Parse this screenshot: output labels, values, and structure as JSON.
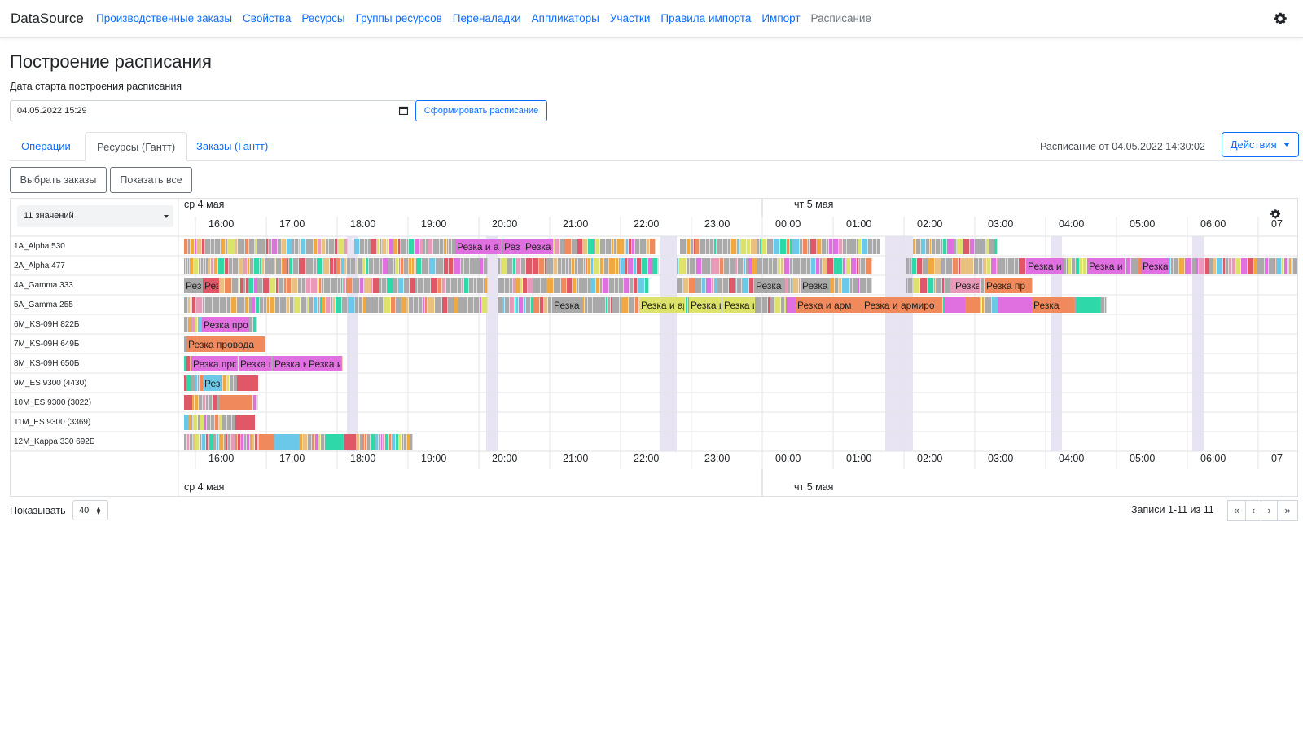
{
  "navbar": {
    "brand": "DataSource",
    "links": [
      "Производственные заказы",
      "Свойства",
      "Ресурсы",
      "Группы ресурсов",
      "Переналадки",
      "Аппликаторы",
      "Участки",
      "Правила импорта",
      "Импорт",
      "Расписание"
    ],
    "active_index": 9,
    "settings_icon": "gear-icon"
  },
  "page": {
    "title": "Построение расписания",
    "date_label": "Дата старта построения расписания",
    "date_value": "04.05.2022 15:29",
    "calendar_icon": "calendar-icon",
    "generate_button": "Сформировать расписание"
  },
  "tabs": [
    {
      "label": "Операции",
      "active": false
    },
    {
      "label": "Ресурсы (Гантт)",
      "active": true
    },
    {
      "label": "Заказы (Гантт)",
      "active": false
    }
  ],
  "schedule_info": "Расписание от 04.05.2022 14:30:02",
  "actions_button": "Действия",
  "buttons": {
    "select_orders": "Выбрать заказы",
    "show_all": "Показать все"
  },
  "gantt": {
    "filter_value": "11 значений",
    "days": [
      "ср 4 мая",
      "чт 5 мая"
    ],
    "hours": [
      "16:00",
      "17:00",
      "18:00",
      "19:00",
      "20:00",
      "21:00",
      "22:00",
      "23:00",
      "00:00",
      "01:00",
      "02:00",
      "03:00",
      "04:00",
      "05:00",
      "06:00",
      "07"
    ],
    "resources": [
      "1A_Alpha 530",
      "2A_Alpha 477",
      "4A_Gamma 333",
      "5A_Gamma 255",
      "6M_KS-09H 822Б",
      "7M_KS-09H 649Б",
      "8M_KS-09H 650Б",
      "9M_ES 9300 (4430)",
      "10M_ES 9300 (3022)",
      "11M_ES 9300 (3369)",
      "12M_Kappa 330 692Б"
    ],
    "colors": {
      "grey": "#a9a9a9",
      "magenta": "#e070e0",
      "salmon": "#f08a5d",
      "yellow": "#dde36a",
      "red": "#e05868",
      "teal": "#2fd8a8",
      "cyan": "#6cc8e8",
      "orange": "#f0a840",
      "tan": "#e8c080",
      "pink": "#e89ab8",
      "break": "#e8e4f4"
    },
    "named_tasks": [
      {
        "row": 0,
        "text": "Резка и а",
        "color": "magenta"
      },
      {
        "row": 0,
        "text": "Рез",
        "color": "magenta"
      },
      {
        "row": 0,
        "text": "Резка",
        "color": "magenta"
      },
      {
        "row": 1,
        "text": "Резка и",
        "color": "magenta"
      },
      {
        "row": 1,
        "text": "Резка и",
        "color": "magenta"
      },
      {
        "row": 1,
        "text": "Резка",
        "color": "magenta"
      },
      {
        "row": 2,
        "text": "Рез",
        "color": "grey"
      },
      {
        "row": 2,
        "text": "Рез",
        "color": "red"
      },
      {
        "row": 2,
        "text": "Резка",
        "color": "grey"
      },
      {
        "row": 2,
        "text": "Резка",
        "color": "grey"
      },
      {
        "row": 2,
        "text": "Резка",
        "color": "pink"
      },
      {
        "row": 2,
        "text": "Резка пр",
        "color": "salmon"
      },
      {
        "row": 3,
        "text": "Резка",
        "color": "grey"
      },
      {
        "row": 3,
        "text": "Резка и арм",
        "color": "yellow"
      },
      {
        "row": 3,
        "text": "Резка и",
        "color": "yellow"
      },
      {
        "row": 3,
        "text": "Резка и",
        "color": "yellow"
      },
      {
        "row": 3,
        "text": "Резка и арм",
        "color": "salmon"
      },
      {
        "row": 3,
        "text": "Резка и армиро",
        "color": "salmon"
      },
      {
        "row": 3,
        "text": "Резка",
        "color": "salmon"
      },
      {
        "row": 3,
        "text": "Резка и а",
        "color": "salmon"
      },
      {
        "row": 4,
        "text": "Резка про",
        "color": "magenta"
      },
      {
        "row": 5,
        "text": "Резка провода",
        "color": "salmon"
      },
      {
        "row": 6,
        "text": "Резка про",
        "color": "magenta"
      },
      {
        "row": 6,
        "text": "Резка и",
        "color": "magenta"
      },
      {
        "row": 6,
        "text": "Резка и",
        "color": "magenta"
      },
      {
        "row": 6,
        "text": "Резка и",
        "color": "magenta"
      },
      {
        "row": 7,
        "text": "Рез",
        "color": "cyan"
      },
      {
        "row": 12,
        "text": "",
        "color": "grey"
      }
    ]
  },
  "footer": {
    "show_label": "Показывать",
    "page_size": "40",
    "records": "Записи 1-11 из 11",
    "pager": [
      "«",
      "‹",
      "›",
      "»"
    ]
  }
}
